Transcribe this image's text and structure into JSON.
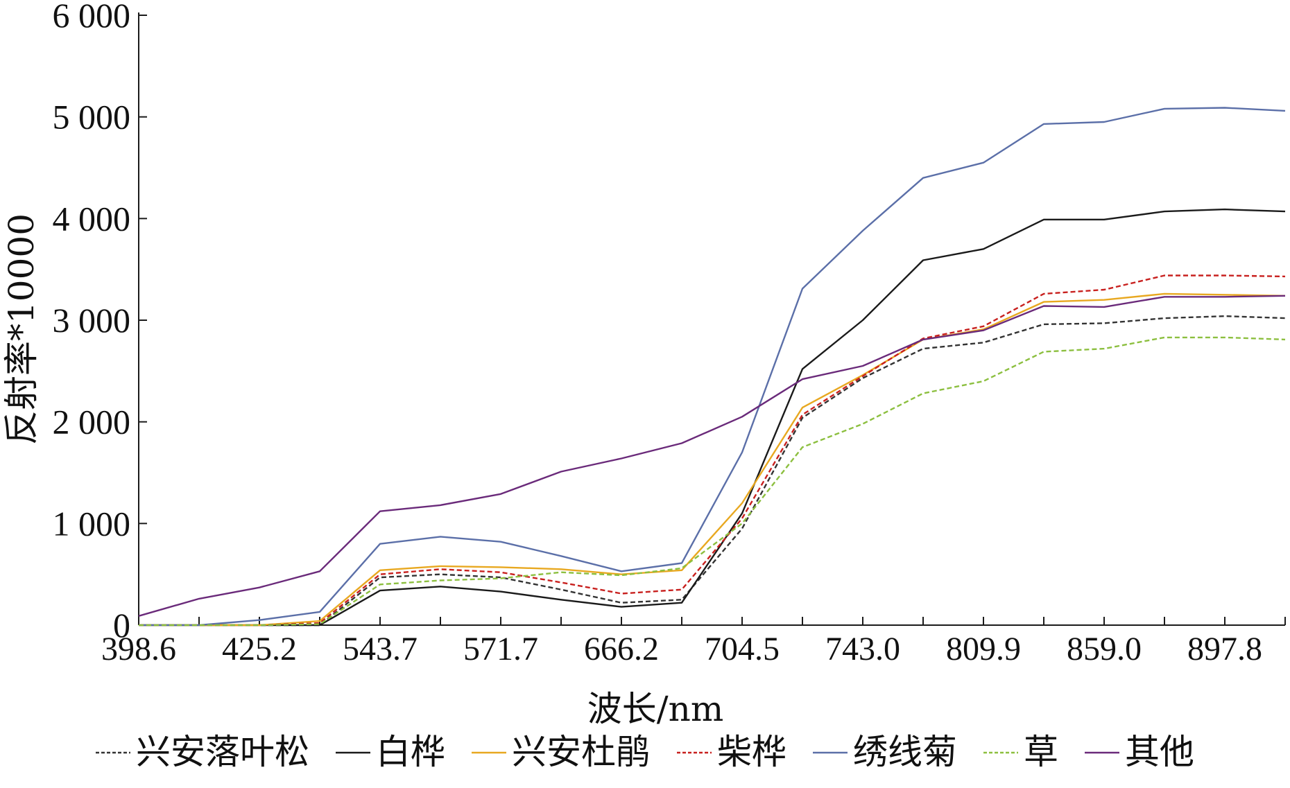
{
  "chart_data": {
    "type": "line",
    "title": "",
    "xlabel": "波长/nm",
    "ylabel": "反射率*10000",
    "ylim": [
      0,
      6000
    ],
    "yticks": [
      0,
      1000,
      2000,
      3000,
      4000,
      5000,
      6000
    ],
    "ytick_labels": [
      "0",
      "1 000",
      "2 000",
      "3 000",
      "4 000",
      "5 000",
      "6 000"
    ],
    "x_labels": [
      "398.6",
      "425.2",
      "543.7",
      "571.7",
      "666.2",
      "704.5",
      "743.0",
      "809.9",
      "859.0",
      "897.8"
    ],
    "grid": false,
    "legend_position": "bottom",
    "series": [
      {
        "name": "兴安落叶松",
        "color": "#333333",
        "dash": "dashed",
        "values": [
          0,
          0,
          0,
          0,
          470,
          500,
          470,
          350,
          220,
          250,
          950,
          2040,
          2430,
          2720,
          2780,
          2960,
          2970,
          3020,
          3040,
          3020
        ]
      },
      {
        "name": "白桦",
        "color": "#1a1a1a",
        "dash": "solid",
        "values": [
          0,
          0,
          0,
          0,
          340,
          380,
          330,
          250,
          180,
          220,
          1100,
          2520,
          3000,
          3590,
          3700,
          3990,
          3990,
          4070,
          4090,
          4070
        ]
      },
      {
        "name": "兴安杜鹃",
        "color": "#e8a820",
        "dash": "solid",
        "values": [
          0,
          0,
          0,
          40,
          540,
          580,
          570,
          550,
          500,
          540,
          1200,
          2140,
          2460,
          2810,
          2910,
          3180,
          3200,
          3260,
          3250,
          3240
        ]
      },
      {
        "name": "柴桦",
        "color": "#c8201e",
        "dash": "dashed",
        "values": [
          0,
          0,
          0,
          20,
          500,
          550,
          520,
          420,
          310,
          350,
          1050,
          2070,
          2450,
          2820,
          2940,
          3260,
          3300,
          3440,
          3440,
          3430
        ]
      },
      {
        "name": "绣线菊",
        "color": "#5b6fa8",
        "dash": "solid",
        "values": [
          0,
          0,
          50,
          130,
          800,
          870,
          820,
          680,
          530,
          610,
          1700,
          3310,
          3880,
          4400,
          4550,
          4930,
          4950,
          5080,
          5090,
          5060
        ]
      },
      {
        "name": "草",
        "color": "#8cbf3f",
        "dash": "dashed",
        "values": [
          0,
          0,
          0,
          10,
          400,
          440,
          460,
          520,
          490,
          560,
          1000,
          1750,
          1980,
          2280,
          2400,
          2690,
          2720,
          2830,
          2830,
          2810
        ]
      },
      {
        "name": "其他",
        "color": "#6a2a7a",
        "dash": "solid",
        "values": [
          90,
          260,
          370,
          530,
          1120,
          1180,
          1290,
          1510,
          1640,
          1790,
          2050,
          2420,
          2550,
          2810,
          2900,
          3140,
          3130,
          3230,
          3230,
          3240
        ]
      }
    ]
  }
}
